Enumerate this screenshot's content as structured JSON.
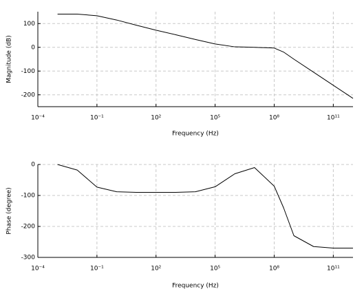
{
  "chart_data": [
    {
      "type": "line",
      "x_label": "Frequency (Hz)",
      "y_label": "Magnitude (dB)",
      "xscale": "log",
      "grid": true,
      "xlim": [
        0.0001,
        1000000000000
      ],
      "ylim": [
        -250,
        150
      ],
      "xticks": [
        {
          "value": 0.0001,
          "label": "10⁻⁴"
        },
        {
          "value": 0.1,
          "label": "10⁻¹"
        },
        {
          "value": 100,
          "label": "10²"
        },
        {
          "value": 100000,
          "label": "10⁵"
        },
        {
          "value": 100000000,
          "label": "10⁸"
        },
        {
          "value": 100000000000,
          "label": "10¹¹"
        }
      ],
      "yticks": [
        100,
        0,
        -100,
        -200
      ],
      "x": [
        0.001,
        0.01,
        0.1,
        1,
        10,
        100,
        1000,
        10000,
        100000,
        1000000,
        10000000,
        100000000,
        300000000,
        1000000000,
        10000000000,
        100000000000,
        1000000000000
      ],
      "series": [
        {
          "color": "#000000",
          "values": [
            140,
            140,
            133,
            115,
            93,
            72,
            53,
            33,
            14,
            2,
            0,
            -3,
            -20,
            -50,
            -105,
            -160,
            -215
          ]
        }
      ]
    },
    {
      "type": "line",
      "x_label": "Frequency (Hz)",
      "y_label": "Phase (degree)",
      "xscale": "log",
      "grid": true,
      "xlim": [
        0.0001,
        1000000000000
      ],
      "ylim": [
        -300,
        0
      ],
      "xticks": [
        {
          "value": 0.0001,
          "label": "10⁻⁴"
        },
        {
          "value": 0.1,
          "label": "10⁻¹"
        },
        {
          "value": 100,
          "label": "10²"
        },
        {
          "value": 100000,
          "label": "10⁵"
        },
        {
          "value": 100000000,
          "label": "10⁸"
        },
        {
          "value": 100000000000,
          "label": "10¹¹"
        }
      ],
      "yticks": [
        0,
        -100,
        -200,
        -300
      ],
      "x": [
        0.001,
        0.01,
        0.1,
        1,
        10,
        100,
        1000,
        10000,
        100000,
        1000000,
        10000000,
        100000000,
        300000000,
        1000000000,
        10000000000,
        100000000000,
        1000000000000
      ],
      "series": [
        {
          "color": "#000000",
          "values": [
            0,
            -18,
            -73,
            -88,
            -90,
            -90,
            -90,
            -88,
            -72,
            -30,
            -10,
            -70,
            -140,
            -230,
            -265,
            -270,
            -270
          ]
        }
      ]
    }
  ]
}
